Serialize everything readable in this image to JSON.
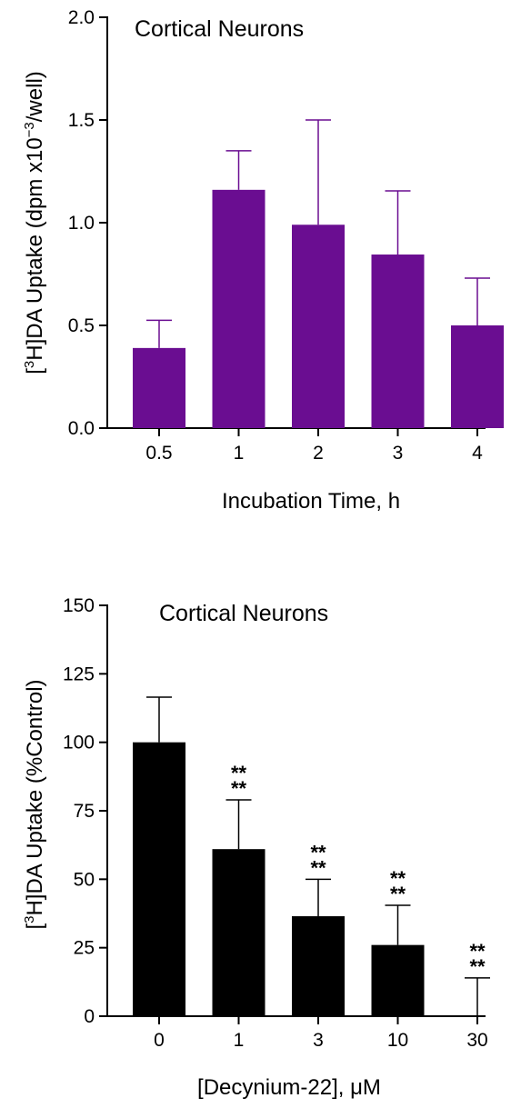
{
  "chart_data": [
    {
      "type": "bar",
      "title": "Cortical Neurons",
      "xlabel": "Incubation Time, h",
      "ylabel_pre": "[",
      "ylabel_sup": "3",
      "ylabel_mid": "H]DA Uptake (dpm x10",
      "ylabel_sup2": "−3",
      "ylabel_post": "/well)",
      "categories": [
        "0.5",
        "1",
        "2",
        "3",
        "4"
      ],
      "values": [
        0.39,
        1.16,
        0.99,
        0.845,
        0.5
      ],
      "errors": [
        0.135,
        0.19,
        0.51,
        0.31,
        0.23
      ],
      "significance": [
        "",
        "",
        "",
        "",
        ""
      ],
      "ylim": [
        0,
        2.0
      ],
      "yticks": [
        "0.0",
        "0.5",
        "1.0",
        "1.5",
        "2.0"
      ],
      "yticks_values": [
        0,
        0.5,
        1.0,
        1.5,
        2.0
      ],
      "bar_color": "#6a0d91",
      "error_color": "#6a0d91"
    },
    {
      "type": "bar",
      "title": "Cortical Neurons",
      "xlabel": "[Decynium-22], μM",
      "ylabel_pre": "[",
      "ylabel_sup": "3",
      "ylabel_mid": "H]DA Uptake (%Control)",
      "ylabel_sup2": "",
      "ylabel_post": "",
      "categories": [
        "0",
        "1",
        "3",
        "10",
        "30"
      ],
      "values": [
        100,
        61,
        36.5,
        26,
        0
      ],
      "errors": [
        16.5,
        18,
        13.5,
        14.5,
        14
      ],
      "significance": [
        "",
        "**\n**",
        "**\n**",
        "**\n**",
        "**\n**"
      ],
      "ylim": [
        0,
        150
      ],
      "yticks": [
        "0",
        "25",
        "50",
        "75",
        "100",
        "125",
        "150"
      ],
      "yticks_values": [
        0,
        25,
        50,
        75,
        100,
        125,
        150
      ],
      "bar_color": "#000000",
      "error_color": "#000000"
    }
  ]
}
